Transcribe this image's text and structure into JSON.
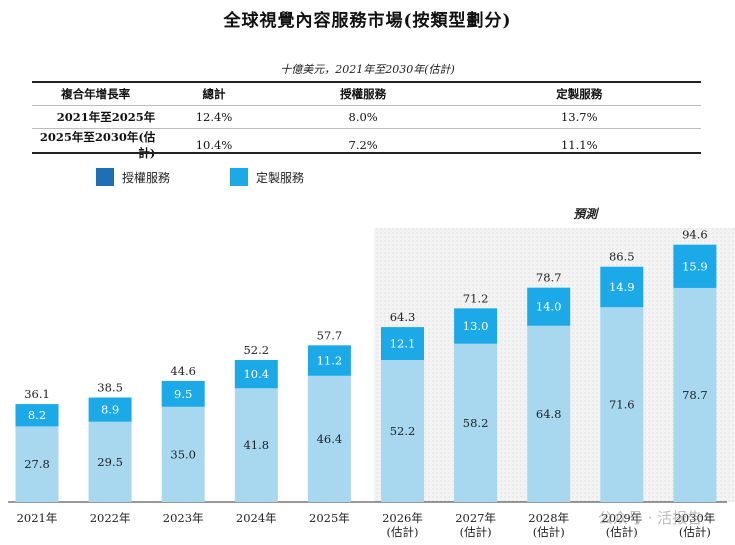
{
  "page": {
    "title": "全球視覺內容服務市場(按類型劃分)",
    "unit_note": "十億美元，2021年至2030年(估計)"
  },
  "cagr_table": {
    "headers": [
      "複合年增長率",
      "總計",
      "授權服務",
      "定製服務"
    ],
    "rows": [
      {
        "period": "2021年至2025年",
        "total": "12.4%",
        "licensing": "8.0%",
        "custom": "13.7%"
      },
      {
        "period": "2025年至2030年(估計)",
        "total": "10.4%",
        "licensing": "7.2%",
        "custom": "11.1%"
      }
    ]
  },
  "legend": {
    "items": [
      {
        "label": "授權服務",
        "color": "#1F6FB5"
      },
      {
        "label": "定製服務",
        "color": "#1CA9E8"
      }
    ]
  },
  "forecast_label": "預測",
  "watermark": "公众号 · 活报告",
  "chart_data": {
    "type": "bar",
    "stacked": true,
    "categories": [
      "2021年",
      "2022年",
      "2023年",
      "2024年",
      "2025年",
      "2026年\n(估計)",
      "2027年\n(估計)",
      "2028年\n(估計)",
      "2029年\n(估計)",
      "2030年\n(估計)"
    ],
    "series": [
      {
        "values": [
          27.8,
          29.5,
          35.0,
          41.8,
          46.4,
          52.2,
          58.2,
          64.8,
          71.6,
          78.7
        ],
        "color": "#A7D8F0"
      },
      {
        "values": [
          8.2,
          8.9,
          9.5,
          10.4,
          11.2,
          12.1,
          13.0,
          14.0,
          14.9,
          15.9
        ],
        "color": "#1CA9E8"
      }
    ],
    "value_labels_bottom": [
      "27.8",
      "29.5",
      "35.0",
      "41.8",
      "46.4",
      "52.2",
      "58.2",
      "64.8",
      "71.6",
      "78.7"
    ],
    "value_labels_top": [
      "8.2",
      "8.9",
      "9.5",
      "10.4",
      "11.2",
      "12.1",
      "13.0",
      "14.0",
      "14.9",
      "15.9"
    ],
    "totals": [
      "36.1",
      "38.5",
      "44.6",
      "52.2",
      "57.7",
      "64.3",
      "71.2",
      "78.7",
      "86.5",
      "94.6"
    ],
    "forecast_start_index": 5,
    "ylim": [
      0,
      100
    ],
    "grid": false,
    "legend_position": "top-left"
  }
}
